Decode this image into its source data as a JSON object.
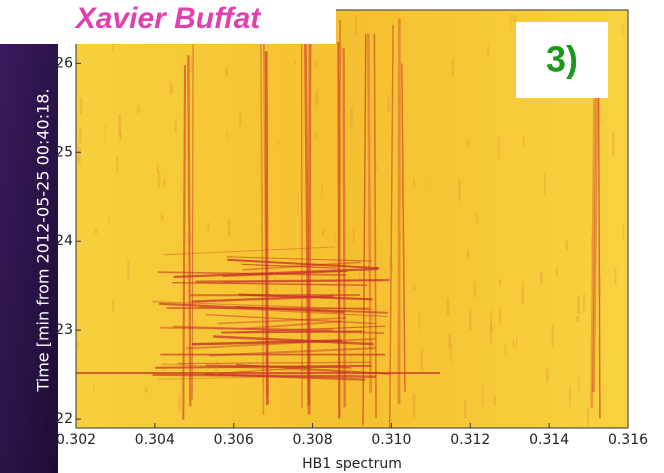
{
  "chart_data": {
    "type": "spectrogram",
    "title": "Xavier Buffat",
    "annotation": "3)",
    "xlabel": "HB1 spectrum",
    "ylabel": "Time [min from 2012-05-25 00:40:18.",
    "xlim": [
      0.302,
      0.316
    ],
    "xticks": [
      {
        "value": 0.302,
        "label": "0.302"
      },
      {
        "value": 0.304,
        "label": "0.304"
      },
      {
        "value": 0.306,
        "label": "0.306"
      },
      {
        "value": 0.308,
        "label": "0.308"
      },
      {
        "value": 0.31,
        "label": "0.310"
      },
      {
        "value": 0.312,
        "label": "0.312"
      },
      {
        "value": 0.314,
        "label": "0.314"
      },
      {
        "value": 0.316,
        "label": "0.316"
      }
    ],
    "ylim": [
      21.9,
      26.6
    ],
    "yticks": [
      22,
      23,
      24,
      25,
      26
    ]
  }
}
